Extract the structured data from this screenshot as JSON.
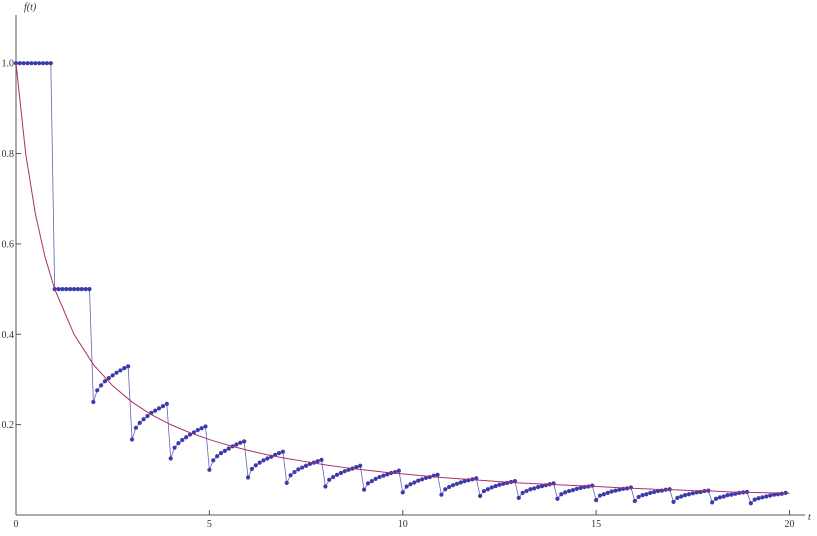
{
  "chart_data": {
    "type": "line",
    "x_label": "t",
    "y_label": "f(t)",
    "xlim": [
      0,
      20.4
    ],
    "ylim": [
      0,
      1.1
    ],
    "xticks": [
      0,
      5,
      10,
      15,
      20
    ],
    "yticks": [
      0.2,
      0.4,
      0.6,
      0.8,
      {
        "value": 1,
        "label": "1.0"
      }
    ],
    "series": [
      {
        "color": "#3a3aaa",
        "markers": true,
        "x": [
          0,
          0.1,
          0.2,
          0.3,
          0.4,
          0.5,
          0.6,
          0.7,
          0.8,
          0.9,
          1,
          1.1,
          1.2,
          1.3,
          1.4,
          1.5,
          1.6,
          1.7,
          1.8,
          1.9,
          2,
          2.1,
          2.2,
          2.3,
          2.4,
          2.5,
          2.6,
          2.7,
          2.8,
          2.9,
          3,
          3.1,
          3.2,
          3.3,
          3.4,
          3.5,
          3.6,
          3.7,
          3.8,
          3.9,
          4,
          4.1,
          4.2,
          4.3,
          4.4,
          4.5,
          4.6,
          4.7,
          4.8,
          4.9,
          5,
          5.1,
          5.2,
          5.3,
          5.4,
          5.5,
          5.6,
          5.7,
          5.8,
          5.9,
          6,
          6.1,
          6.2,
          6.3,
          6.4,
          6.5,
          6.6,
          6.7,
          6.8,
          6.9,
          7,
          7.1,
          7.2,
          7.3,
          7.4,
          7.5,
          7.6,
          7.7,
          7.8,
          7.9,
          8,
          8.1,
          8.2,
          8.3,
          8.4,
          8.5,
          8.6,
          8.7,
          8.8,
          8.9,
          9,
          9.1,
          9.2,
          9.3,
          9.4,
          9.5,
          9.6,
          9.7,
          9.8,
          9.9,
          10,
          10.1,
          10.2,
          10.3,
          10.4,
          10.5,
          10.6,
          10.7,
          10.8,
          10.9,
          11,
          11.1,
          11.2,
          11.3,
          11.4,
          11.5,
          11.6,
          11.7,
          11.8,
          11.9,
          12,
          12.1,
          12.2,
          12.3,
          12.4,
          12.5,
          12.6,
          12.7,
          12.8,
          12.9,
          13,
          13.1,
          13.2,
          13.3,
          13.4,
          13.5,
          13.6,
          13.7,
          13.8,
          13.9,
          14,
          14.1,
          14.2,
          14.3,
          14.4,
          14.5,
          14.6,
          14.7,
          14.8,
          14.9,
          15,
          15.1,
          15.2,
          15.3,
          15.4,
          15.5,
          15.6,
          15.7,
          15.8,
          15.9,
          16,
          16.1,
          16.2,
          16.3,
          16.4,
          16.5,
          16.6,
          16.7,
          16.8,
          16.9,
          17,
          17.1,
          17.2,
          17.3,
          17.4,
          17.5,
          17.6,
          17.7,
          17.8,
          17.9,
          18,
          18.1,
          18.2,
          18.3,
          18.4,
          18.5,
          18.6,
          18.7,
          18.8,
          18.9,
          19,
          19.1,
          19.2,
          19.3,
          19.4,
          19.5,
          19.6,
          19.7,
          19.8,
          19.9
        ],
        "values": [
          1,
          1,
          1,
          1,
          1,
          1,
          1,
          1,
          1,
          1,
          0.5,
          0.5,
          0.5,
          0.5,
          0.5,
          0.5,
          0.5,
          0.5,
          0.5,
          0.5,
          0.25,
          0.276,
          0.287,
          0.296,
          0.303,
          0.309,
          0.315,
          0.32,
          0.325,
          0.329,
          0.167,
          0.193,
          0.204,
          0.212,
          0.219,
          0.226,
          0.231,
          0.236,
          0.241,
          0.246,
          0.125,
          0.149,
          0.159,
          0.166,
          0.172,
          0.178,
          0.183,
          0.188,
          0.192,
          0.196,
          0.1,
          0.121,
          0.13,
          0.137,
          0.142,
          0.147,
          0.152,
          0.156,
          0.16,
          0.163,
          0.083,
          0.102,
          0.11,
          0.116,
          0.121,
          0.125,
          0.129,
          0.133,
          0.137,
          0.14,
          0.071,
          0.088,
          0.095,
          0.101,
          0.105,
          0.109,
          0.113,
          0.116,
          0.119,
          0.122,
          0.063,
          0.078,
          0.084,
          0.089,
          0.093,
          0.097,
          0.1,
          0.103,
          0.106,
          0.109,
          0.056,
          0.07,
          0.075,
          0.08,
          0.084,
          0.087,
          0.09,
          0.093,
          0.095,
          0.098,
          0.05,
          0.063,
          0.068,
          0.072,
          0.076,
          0.079,
          0.082,
          0.084,
          0.087,
          0.089,
          0.045,
          0.057,
          0.062,
          0.066,
          0.069,
          0.072,
          0.075,
          0.077,
          0.079,
          0.081,
          0.042,
          0.053,
          0.057,
          0.061,
          0.064,
          0.067,
          0.069,
          0.071,
          0.073,
          0.075,
          0.038,
          0.049,
          0.053,
          0.057,
          0.059,
          0.062,
          0.064,
          0.066,
          0.068,
          0.07,
          0.036,
          0.046,
          0.05,
          0.053,
          0.055,
          0.058,
          0.06,
          0.062,
          0.063,
          0.065,
          0.033,
          0.043,
          0.046,
          0.049,
          0.052,
          0.054,
          0.056,
          0.058,
          0.059,
          0.061,
          0.031,
          0.04,
          0.044,
          0.046,
          0.049,
          0.051,
          0.053,
          0.054,
          0.056,
          0.057,
          0.029,
          0.038,
          0.041,
          0.044,
          0.046,
          0.048,
          0.05,
          0.051,
          0.053,
          0.054,
          0.028,
          0.036,
          0.039,
          0.041,
          0.044,
          0.045,
          0.047,
          0.049,
          0.05,
          0.051,
          0.026,
          0.034,
          0.037,
          0.039,
          0.041,
          0.043,
          0.045,
          0.046,
          0.047,
          0.049
        ]
      },
      {
        "color": "#a8306a",
        "markers": false,
        "x": [
          0,
          0.25,
          0.5,
          0.75,
          1,
          1.5,
          2,
          2.5,
          3,
          3.5,
          4,
          4.5,
          5,
          5.5,
          6,
          6.5,
          7,
          7.5,
          8,
          8.5,
          9,
          9.5,
          10,
          10.5,
          11,
          11.5,
          12,
          12.5,
          13,
          13.5,
          14,
          14.5,
          15,
          15.5,
          16,
          16.5,
          17,
          17.5,
          18,
          18.5,
          19,
          19.5,
          20
        ],
        "values": [
          1,
          0.8,
          0.667,
          0.571,
          0.5,
          0.4,
          0.333,
          0.286,
          0.25,
          0.222,
          0.2,
          0.182,
          0.167,
          0.154,
          0.143,
          0.133,
          0.125,
          0.118,
          0.111,
          0.105,
          0.1,
          0.095,
          0.091,
          0.087,
          0.083,
          0.08,
          0.077,
          0.074,
          0.071,
          0.069,
          0.067,
          0.065,
          0.063,
          0.061,
          0.059,
          0.057,
          0.056,
          0.054,
          0.053,
          0.051,
          0.05,
          0.049,
          0.048
        ]
      }
    ]
  }
}
